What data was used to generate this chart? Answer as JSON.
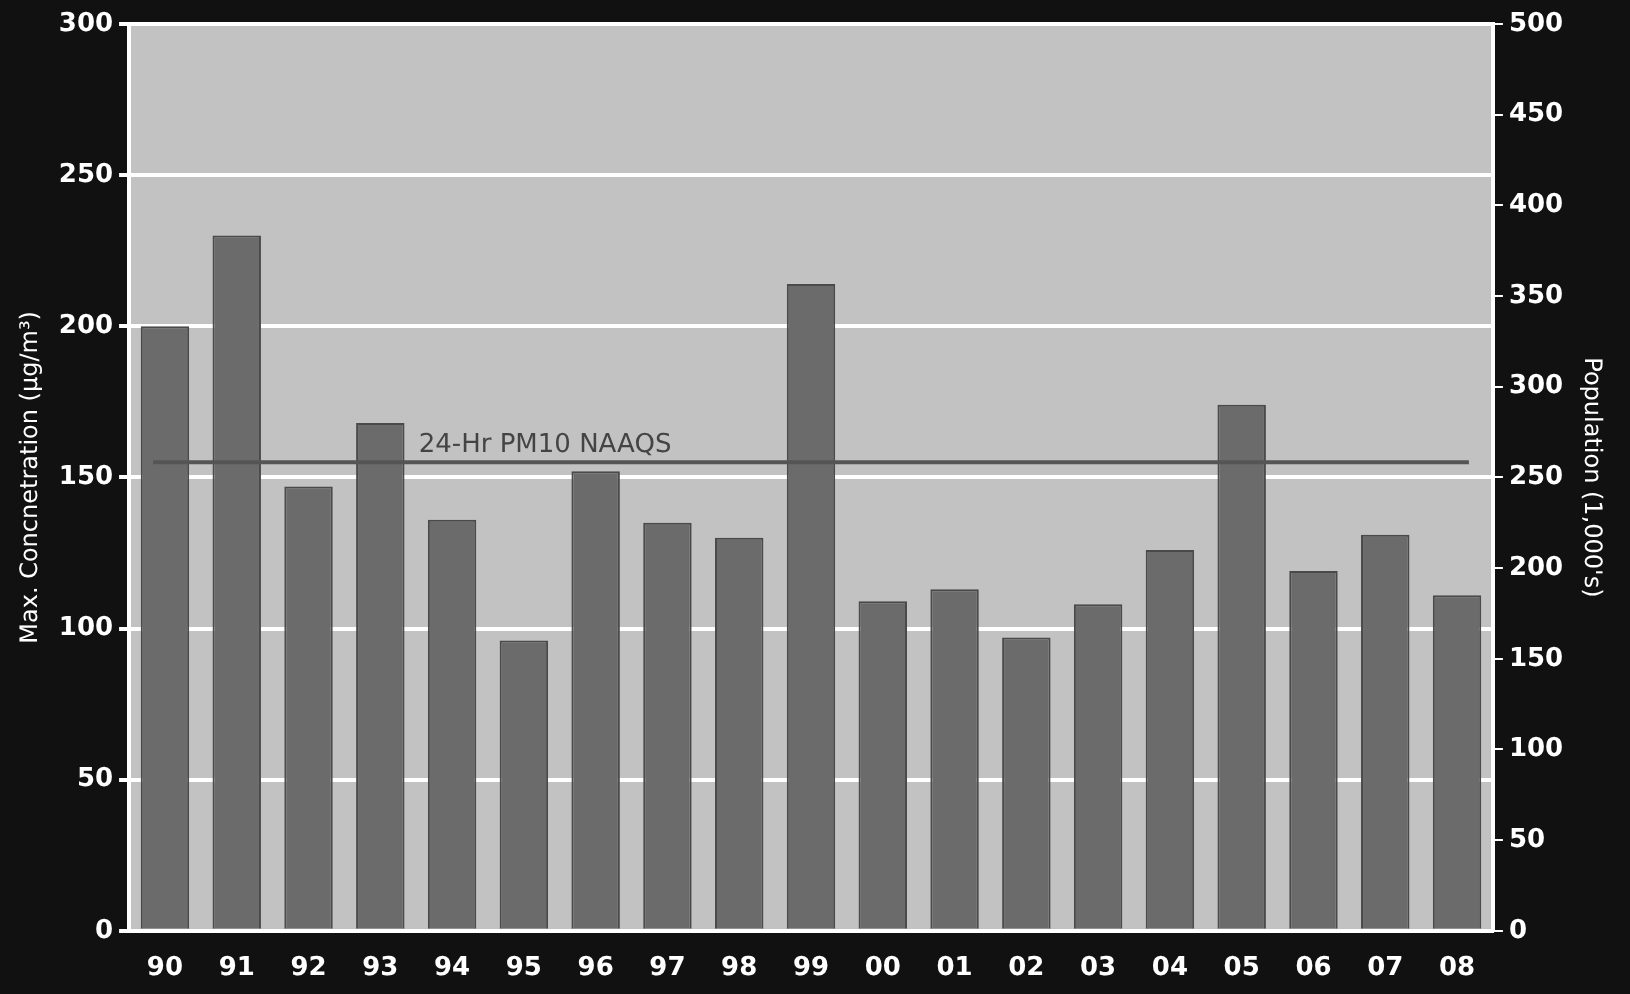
{
  "chart_data": {
    "type": "bar",
    "categories": [
      "90",
      "91",
      "92",
      "93",
      "94",
      "95",
      "96",
      "97",
      "98",
      "99",
      "00",
      "01",
      "02",
      "03",
      "04",
      "05",
      "06",
      "07",
      "08"
    ],
    "series": [
      {
        "color": "#6b6b6b",
        "values": [
          200,
          230,
          147,
          168,
          136,
          96,
          152,
          135,
          130,
          214,
          109,
          113,
          97,
          108,
          126,
          174,
          119,
          131,
          111
        ]
      }
    ],
    "ylabel": "Max. Concnetration (µg/m³)",
    "y2label": "Population (1,000's)",
    "ylim": [
      0,
      300
    ],
    "yticks": [
      0,
      50,
      100,
      150,
      200,
      250,
      300
    ],
    "y2lim": [
      0,
      500
    ],
    "y2ticks": [
      0,
      50,
      100,
      150,
      200,
      250,
      300,
      350,
      400,
      450,
      500
    ],
    "ref_lines": [
      {
        "axis": "y",
        "value": 155,
        "label": "24-Hr PM10 NAAQS",
        "color": "#555555"
      }
    ],
    "grid": "y",
    "legend": false
  }
}
